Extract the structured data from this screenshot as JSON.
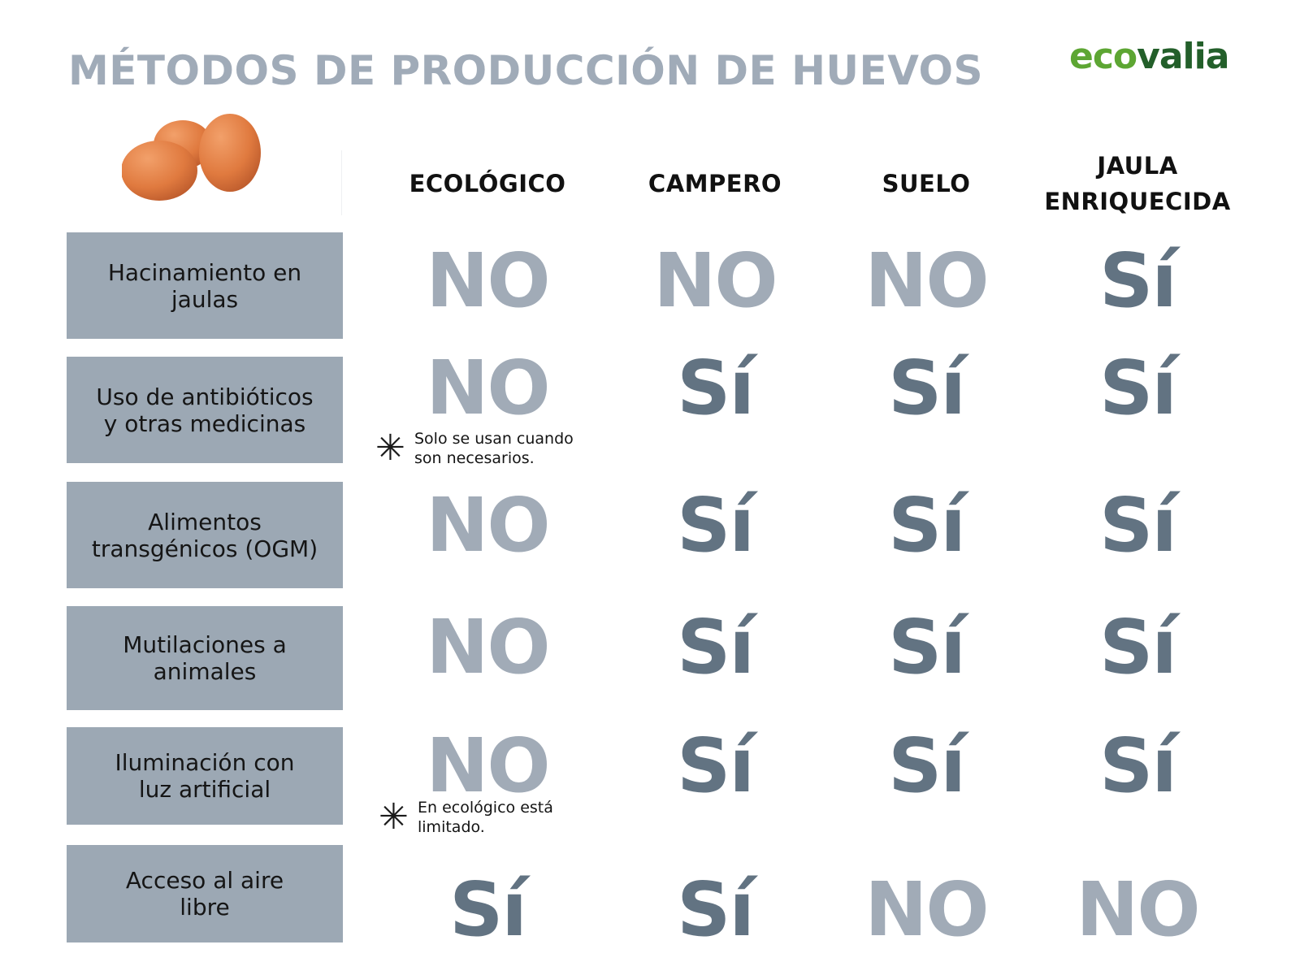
{
  "title": "MÉTODOS DE PRODUCCIÓN DE HUEVOS",
  "logo": {
    "part1": "eco",
    "part2": "valia"
  },
  "columns": [
    "ECOLÓGICO",
    "CAMPERO",
    "SUELO",
    "JAULA\nENRIQUECIDA"
  ],
  "rows": [
    {
      "label": "Hacinamiento en\njaulas",
      "values": [
        "NO",
        "NO",
        "NO",
        "Sí"
      ]
    },
    {
      "label": "Uso de antibióticos\ny otras medicinas",
      "values": [
        "NO",
        "Sí",
        "Sí",
        "Sí"
      ]
    },
    {
      "label": "Alimentos\ntransgénicos (OGM)",
      "values": [
        "NO",
        "Sí",
        "Sí",
        "Sí"
      ]
    },
    {
      "label": "Mutilaciones a\nanimales",
      "values": [
        "NO",
        "Sí",
        "Sí",
        "Sí"
      ]
    },
    {
      "label": "Iluminación con\nluz artificial",
      "values": [
        "NO",
        "Sí",
        "Sí",
        "Sí"
      ]
    },
    {
      "label": "Acceso al aire\nlibre",
      "values": [
        "Sí",
        "Sí",
        "NO",
        "NO"
      ]
    }
  ],
  "notes": [
    {
      "icon": "asterisk-icon",
      "text": "Solo se usan cuando\nson necesarios."
    },
    {
      "icon": "asterisk-icon",
      "text": "En ecológico está\nlimitado."
    }
  ],
  "colors": {
    "title": "#a0abb8",
    "label_bg": "#9ca8b4",
    "no": "#a1abb7",
    "si": "#627382",
    "logo_eco": "#5da633",
    "logo_valia": "#235f2a"
  }
}
